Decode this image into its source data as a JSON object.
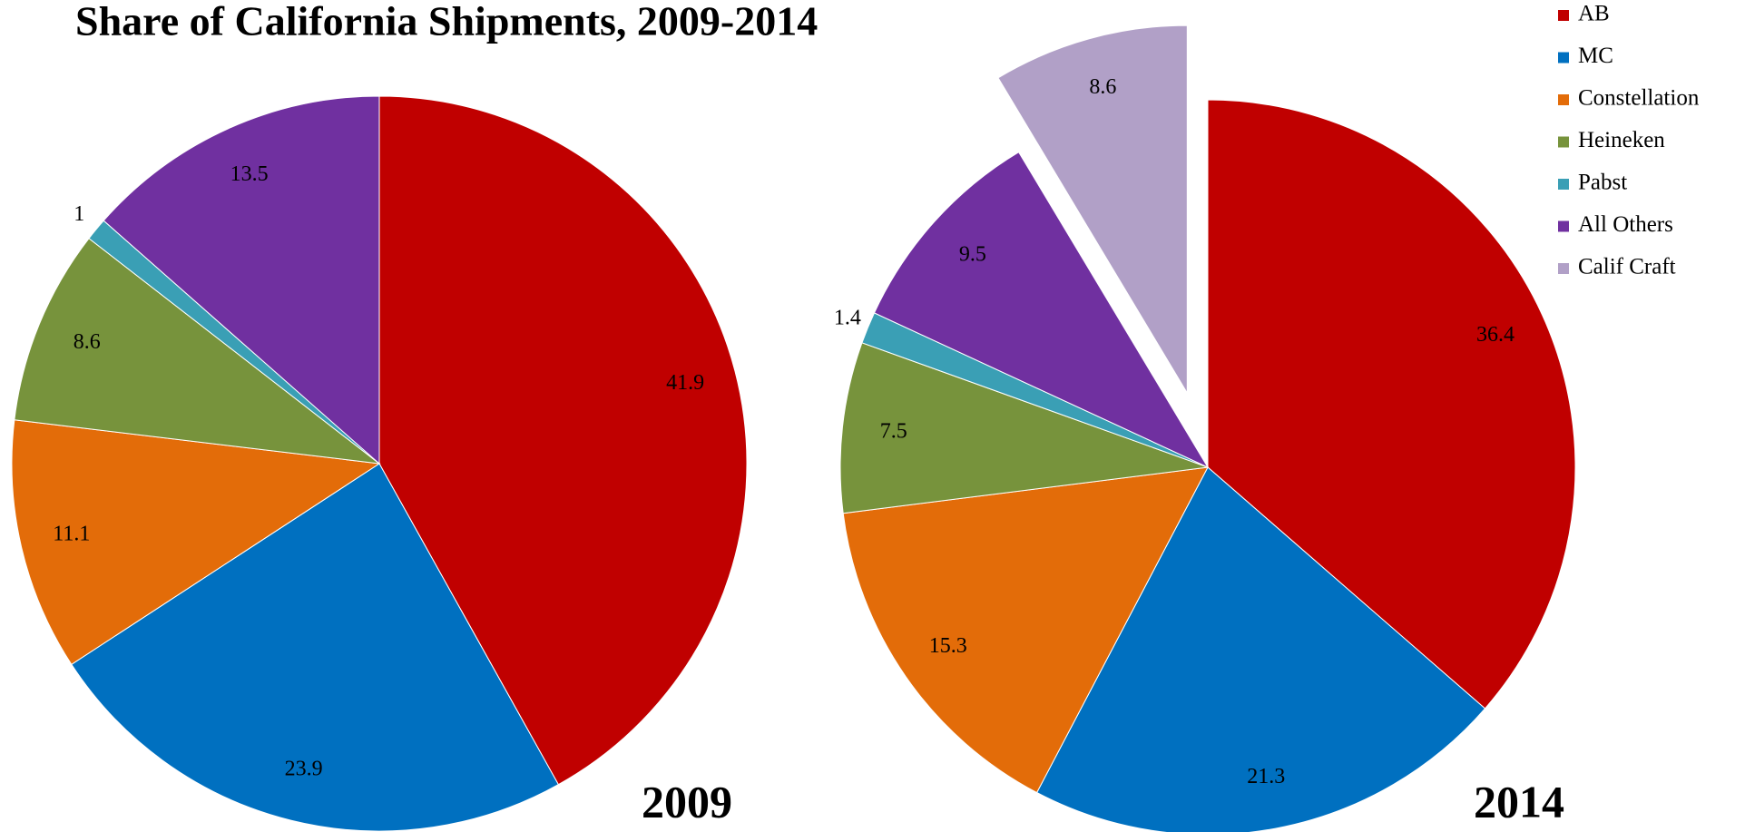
{
  "title": "Share of California Shipments, 2009-2014",
  "chart_data": [
    {
      "type": "pie",
      "label": "2009",
      "categories": [
        "AB",
        "MC",
        "Constellation",
        "Heineken",
        "Pabst",
        "All Others"
      ],
      "values": [
        41.9,
        23.9,
        11.1,
        8.6,
        1,
        13.5
      ],
      "colors": [
        "#c00000",
        "#0070c0",
        "#e36c09",
        "#77933c",
        "#3a9fb5",
        "#7030a0"
      ],
      "explode": [
        false,
        false,
        false,
        false,
        false,
        false
      ]
    },
    {
      "type": "pie",
      "label": "2014",
      "categories": [
        "AB",
        "MC",
        "Constellation",
        "Heineken",
        "Pabst",
        "All Others",
        "Calif Craft"
      ],
      "values": [
        36.4,
        21.3,
        15.3,
        7.5,
        1.4,
        9.5,
        8.6
      ],
      "colors": [
        "#c00000",
        "#0070c0",
        "#e36c09",
        "#77933c",
        "#3a9fb5",
        "#7030a0",
        "#b1a0c7"
      ],
      "explode": [
        false,
        false,
        false,
        false,
        false,
        false,
        true
      ],
      "legend": "top-right"
    }
  ]
}
